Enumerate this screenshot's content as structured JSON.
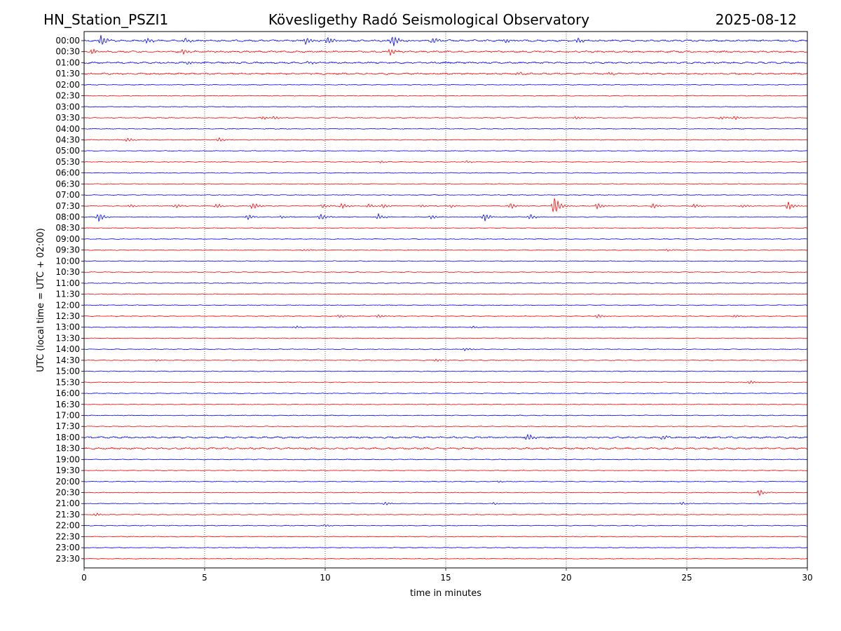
{
  "header": {
    "station": "HN_Station_PSZI1",
    "observatory": "Kövesligethy Radó Seismological Observatory",
    "date": "2025-08-12"
  },
  "chart_data": {
    "type": "line",
    "title": "Kövesligethy Radó Seismological Observatory",
    "xlabel": "time in minutes",
    "ylabel": "UTC (local time = UTC + 02:00)",
    "xlim": [
      0,
      30
    ],
    "x_ticks": [
      "0",
      "5",
      "10",
      "15",
      "20",
      "25",
      "30"
    ],
    "grid_x": true,
    "series_colors": [
      "#0000ff",
      "#ff0000"
    ],
    "rows": [
      "00:00",
      "00:30",
      "01:00",
      "01:30",
      "02:00",
      "02:30",
      "03:00",
      "03:30",
      "04:00",
      "04:30",
      "05:00",
      "05:30",
      "06:00",
      "06:30",
      "07:00",
      "07:30",
      "08:00",
      "08:30",
      "09:00",
      "09:30",
      "10:00",
      "10:30",
      "11:00",
      "11:30",
      "12:00",
      "12:30",
      "13:00",
      "13:30",
      "14:00",
      "14:30",
      "15:00",
      "15:30",
      "16:00",
      "16:30",
      "17:00",
      "17:30",
      "18:00",
      "18:30",
      "19:00",
      "19:30",
      "20:00",
      "20:30",
      "21:00",
      "21:30",
      "22:00",
      "22:30",
      "23:00",
      "23:30"
    ],
    "events": [
      {
        "row": 0,
        "t": 0.7,
        "amp": 1.0
      },
      {
        "row": 0,
        "t": 2.6,
        "amp": 0.5
      },
      {
        "row": 0,
        "t": 4.2,
        "amp": 0.5
      },
      {
        "row": 0,
        "t": 9.2,
        "amp": 0.6
      },
      {
        "row": 0,
        "t": 10.1,
        "amp": 0.8
      },
      {
        "row": 0,
        "t": 12.8,
        "amp": 1.0
      },
      {
        "row": 0,
        "t": 14.5,
        "amp": 0.6
      },
      {
        "row": 0,
        "t": 17.5,
        "amp": 0.4
      },
      {
        "row": 0,
        "t": 20.5,
        "amp": 0.5
      },
      {
        "row": 1,
        "t": 0.3,
        "amp": 0.5
      },
      {
        "row": 1,
        "t": 4.1,
        "amp": 0.6
      },
      {
        "row": 1,
        "t": 12.7,
        "amp": 0.6
      },
      {
        "row": 2,
        "t": 4.3,
        "amp": 0.3
      },
      {
        "row": 2,
        "t": 9.3,
        "amp": 0.3
      },
      {
        "row": 3,
        "t": 18.0,
        "amp": 0.3
      },
      {
        "row": 3,
        "t": 21.8,
        "amp": 0.3
      },
      {
        "row": 7,
        "t": 7.4,
        "amp": 0.3
      },
      {
        "row": 7,
        "t": 7.9,
        "amp": 0.3
      },
      {
        "row": 7,
        "t": 20.4,
        "amp": 0.3
      },
      {
        "row": 7,
        "t": 26.4,
        "amp": 0.3
      },
      {
        "row": 7,
        "t": 27.0,
        "amp": 0.3
      },
      {
        "row": 9,
        "t": 1.8,
        "amp": 0.4
      },
      {
        "row": 9,
        "t": 5.6,
        "amp": 0.4
      },
      {
        "row": 11,
        "t": 12.3,
        "amp": 0.2
      },
      {
        "row": 11,
        "t": 15.9,
        "amp": 0.2
      },
      {
        "row": 15,
        "t": 1.9,
        "amp": 0.3
      },
      {
        "row": 15,
        "t": 3.8,
        "amp": 0.4
      },
      {
        "row": 15,
        "t": 5.5,
        "amp": 0.5
      },
      {
        "row": 15,
        "t": 7.0,
        "amp": 0.6
      },
      {
        "row": 15,
        "t": 9.9,
        "amp": 0.4
      },
      {
        "row": 15,
        "t": 10.7,
        "amp": 0.5
      },
      {
        "row": 15,
        "t": 11.8,
        "amp": 0.4
      },
      {
        "row": 15,
        "t": 12.4,
        "amp": 0.4
      },
      {
        "row": 15,
        "t": 14.0,
        "amp": 0.3
      },
      {
        "row": 15,
        "t": 15.2,
        "amp": 0.3
      },
      {
        "row": 15,
        "t": 17.7,
        "amp": 0.6
      },
      {
        "row": 15,
        "t": 19.5,
        "amp": 2.0
      },
      {
        "row": 15,
        "t": 21.3,
        "amp": 0.6
      },
      {
        "row": 15,
        "t": 23.6,
        "amp": 0.5
      },
      {
        "row": 15,
        "t": 25.3,
        "amp": 0.4
      },
      {
        "row": 15,
        "t": 27.3,
        "amp": 0.3
      },
      {
        "row": 15,
        "t": 29.2,
        "amp": 0.8
      },
      {
        "row": 16,
        "t": 0.6,
        "amp": 0.8
      },
      {
        "row": 16,
        "t": 6.8,
        "amp": 0.5
      },
      {
        "row": 16,
        "t": 8.2,
        "amp": 0.3
      },
      {
        "row": 16,
        "t": 9.8,
        "amp": 0.7
      },
      {
        "row": 16,
        "t": 12.2,
        "amp": 0.5
      },
      {
        "row": 16,
        "t": 14.4,
        "amp": 0.4
      },
      {
        "row": 16,
        "t": 16.6,
        "amp": 0.8
      },
      {
        "row": 16,
        "t": 18.5,
        "amp": 0.5
      },
      {
        "row": 19,
        "t": 9.1,
        "amp": 0.2
      },
      {
        "row": 19,
        "t": 24.2,
        "amp": 0.2
      },
      {
        "row": 25,
        "t": 10.6,
        "amp": 0.3
      },
      {
        "row": 25,
        "t": 12.2,
        "amp": 0.3
      },
      {
        "row": 25,
        "t": 21.3,
        "amp": 0.4
      },
      {
        "row": 25,
        "t": 27.0,
        "amp": 0.3
      },
      {
        "row": 26,
        "t": 8.8,
        "amp": 0.2
      },
      {
        "row": 26,
        "t": 16.1,
        "amp": 0.2
      },
      {
        "row": 28,
        "t": 15.8,
        "amp": 0.3
      },
      {
        "row": 29,
        "t": 3.0,
        "amp": 0.2
      },
      {
        "row": 29,
        "t": 14.6,
        "amp": 0.3
      },
      {
        "row": 31,
        "t": 27.6,
        "amp": 0.3
      },
      {
        "row": 36,
        "t": 18.4,
        "amp": 0.8
      },
      {
        "row": 36,
        "t": 24.0,
        "amp": 0.4
      },
      {
        "row": 40,
        "t": 17.2,
        "amp": 0.2
      },
      {
        "row": 41,
        "t": 28.0,
        "amp": 0.6
      },
      {
        "row": 42,
        "t": 12.5,
        "amp": 0.3
      },
      {
        "row": 42,
        "t": 17.0,
        "amp": 0.2
      },
      {
        "row": 42,
        "t": 24.8,
        "amp": 0.3
      },
      {
        "row": 43,
        "t": 0.5,
        "amp": 0.3
      },
      {
        "row": 44,
        "t": 10.0,
        "amp": 0.2
      }
    ]
  }
}
